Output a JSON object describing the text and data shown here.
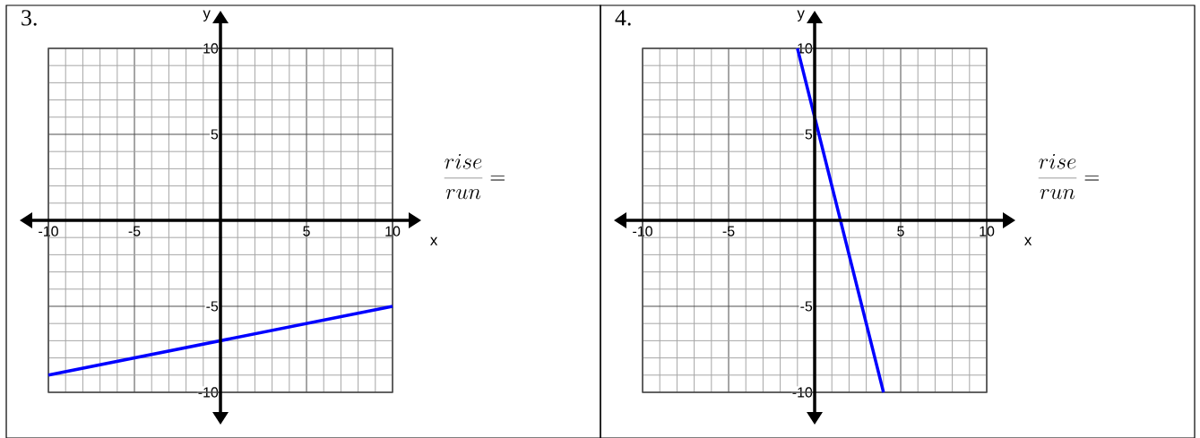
{
  "chart_data": [
    {
      "type": "line",
      "title": "3.",
      "xlabel": "x",
      "ylabel": "y",
      "x": [
        -10,
        10
      ],
      "series": [
        {
          "color": "#0000ff",
          "values": [
            -9,
            -5
          ]
        }
      ],
      "xlim": [
        -10,
        10
      ],
      "ylim": [
        -10,
        10
      ],
      "xticks": [
        -10,
        -5,
        {
          "value": 0,
          "label": null
        },
        5,
        10
      ],
      "yticks": [
        -10,
        -5,
        {
          "value": 0,
          "label": null
        },
        5,
        10
      ],
      "grid": true,
      "marker": "none",
      "annotations": [
        "\\frac{rise}{run} ="
      ]
    },
    {
      "type": "line",
      "title": "4.",
      "xlabel": "x",
      "ylabel": "y",
      "x": [
        -1,
        4
      ],
      "series": [
        {
          "color": "#0000ff",
          "values": [
            10,
            -10
          ]
        }
      ],
      "xlim": [
        -10,
        10
      ],
      "ylim": [
        -10,
        10
      ],
      "xticks": [
        -10,
        -5,
        {
          "value": 0,
          "label": null
        },
        5,
        10
      ],
      "yticks": [
        -10,
        -5,
        {
          "value": 0,
          "label": null
        },
        5,
        10
      ],
      "grid": true,
      "marker": "none",
      "annotations": [
        "\\frac{rise}{run} ="
      ]
    }
  ]
}
